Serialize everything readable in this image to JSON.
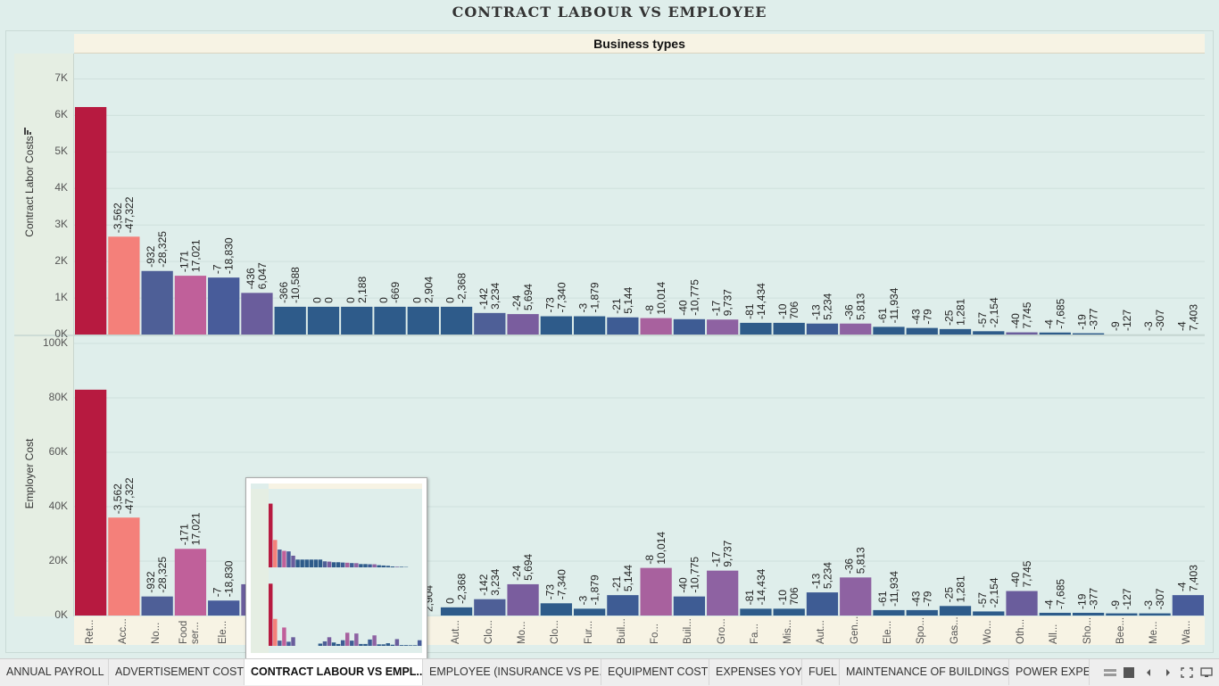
{
  "title": "CONTRACT LABOUR VS EMPLOYEE",
  "header": "Business types",
  "tabs": [
    {
      "label": "ANNUAL PAYROLL",
      "active": false
    },
    {
      "label": "ADVERTISEMENT COST",
      "active": false
    },
    {
      "label": "CONTRACT LABOUR VS EMPL...",
      "active": true
    },
    {
      "label": "EMPLOYEE (INSURANCE VS PE...",
      "active": false
    },
    {
      "label": "EQUIPMENT COST",
      "active": false
    },
    {
      "label": "EXPENSES YOY",
      "active": false
    },
    {
      "label": "FUEL",
      "active": false
    },
    {
      "label": "MAINTENANCE OF BUILDINGS",
      "active": false
    },
    {
      "label": "POWER EXPEN",
      "active": false
    }
  ],
  "controls": {
    "grid_icon": "grid-view-icon",
    "filmstrip_icon": "filmstrip-icon",
    "prev_icon": "prev-tab-icon",
    "next_icon": "next-tab-icon",
    "fullscreen_icon": "fullscreen-icon",
    "share_icon": "share-icon"
  },
  "chart_data": {
    "type": "bar",
    "x_label_header": "Business types",
    "categories": [
      "Ret...",
      "Acc...",
      "No...",
      "Food ser...",
      "Ele...",
      "",
      "",
      "",
      "",
      "",
      "",
      "Aut...",
      "Clo...",
      "Mo...",
      "Clo...",
      "Fur...",
      "Buil...",
      "Fo...",
      "Buil...",
      "Gro...",
      "Fa...",
      "Mis...",
      "Aut...",
      "Gen...",
      "Ele...",
      "Spo...",
      "Gas...",
      "Wo...",
      "Oth...",
      "All...",
      "Sho...",
      "Bee...",
      "Me...",
      "Wa..."
    ],
    "colors": [
      "#b71a40",
      "#f4807a",
      "#4e5f97",
      "#c0609a",
      "#485c9a",
      "#6a5d9c",
      "#2e5b8a",
      "#2e5b8a",
      "#2e5b8a",
      "#2e5b8a",
      "#2e5b8a",
      "#2e5b8a",
      "#4e5f97",
      "#7a5d9e",
      "#2e5b8a",
      "#2e5b8a",
      "#3e5c94",
      "#a8619e",
      "#3e5c94",
      "#8e62a2",
      "#2e5b8a",
      "#2e5b8a",
      "#3e5c94",
      "#8e62a2",
      "#2e5b8a",
      "#2e5b8a",
      "#2e5b8a",
      "#2e5b8a",
      "#6a5d9c",
      "#2e5b8a",
      "#2e5b8a",
      "#2e5b8a",
      "#2e5b8a",
      "#485c9a"
    ],
    "labels_top": [
      "",
      "-3,562",
      "-932",
      "-171",
      "-7",
      "-436",
      "-366",
      "0",
      "0",
      "0",
      "0",
      "0",
      "-142",
      "-24",
      "-73",
      "-3",
      "-21",
      "-8",
      "-40",
      "-17",
      "-81",
      "-10",
      "-13",
      "-36",
      "-61",
      "-43",
      "-25",
      "-57",
      "-40",
      "-4",
      "-19",
      "-9",
      "-3",
      "-4"
    ],
    "labels_bottom": [
      "",
      "-47,322",
      "-28,325",
      "17,021",
      "-18,830",
      "6,047",
      "-10,588",
      "0",
      "2,188",
      "-669",
      "2,904",
      "-2,368",
      "3,234",
      "5,694",
      "-7,340",
      "-1,879",
      "5,144",
      "10,014",
      "-10,775",
      "9,737",
      "-14,434",
      "706",
      "5,234",
      "5,813",
      "-11,934",
      "-79",
      "1,281",
      "-2,154",
      "7,745",
      "-7,685",
      "-377",
      "-127",
      "-307",
      "7,403"
    ],
    "series": [
      {
        "name": "Contract Labor Costs",
        "values": [
          6230,
          2680,
          1740,
          1610,
          1560,
          1140,
          760,
          760,
          760,
          760,
          760,
          760,
          590,
          560,
          500,
          500,
          470,
          450,
          420,
          410,
          320,
          320,
          300,
          300,
          210,
          180,
          150,
          90,
          60,
          55,
          35,
          0,
          0,
          0
        ],
        "ylim": [
          0,
          7500
        ],
        "ticks": [
          0,
          1000,
          2000,
          3000,
          4000,
          5000,
          6000,
          7000
        ],
        "tick_labels": [
          "0K",
          "1K",
          "2K",
          "3K",
          "4K",
          "5K",
          "6K",
          "7K"
        ]
      },
      {
        "name": "Employer Cost",
        "values": [
          83000,
          36000,
          7000,
          24500,
          5500,
          11500,
          0,
          0,
          0,
          0,
          0,
          3000,
          6000,
          11500,
          4500,
          2500,
          7500,
          17500,
          7000,
          16500,
          2500,
          2500,
          8500,
          14000,
          2000,
          2000,
          3500,
          1500,
          9000,
          1000,
          1000,
          800,
          800,
          7500
        ],
        "ylim": [
          0,
          100000
        ],
        "ticks": [
          0,
          20000,
          40000,
          60000,
          80000,
          100000
        ],
        "tick_labels": [
          "0K",
          "20K",
          "40K",
          "60K",
          "80K",
          "100K"
        ]
      }
    ],
    "grid": true
  }
}
